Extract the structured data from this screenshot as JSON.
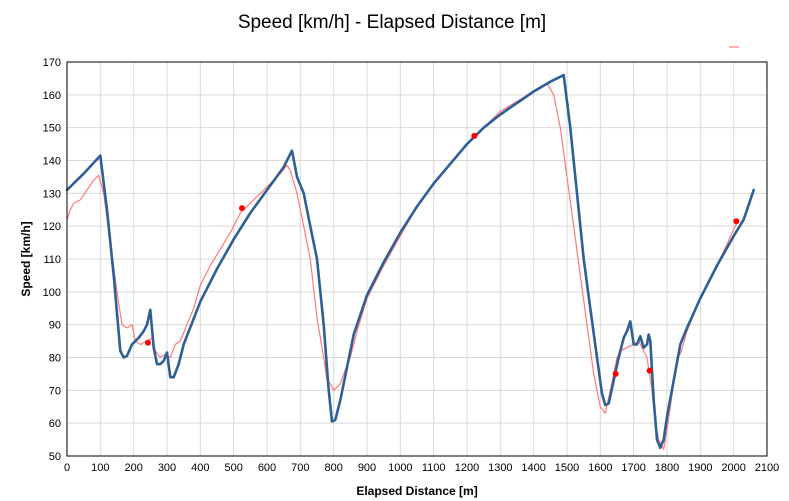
{
  "chart_data": {
    "type": "line",
    "title": "Speed [km/h] - Elapsed Distance [m]",
    "xlabel": "Elapsed Distance [m]",
    "ylabel": "Speed [km/h]",
    "xlim": [
      0,
      2100
    ],
    "ylim": [
      50,
      170
    ],
    "xticks": [
      0,
      100,
      200,
      300,
      400,
      500,
      600,
      700,
      800,
      900,
      1000,
      1100,
      1200,
      1300,
      1400,
      1500,
      1600,
      1700,
      1800,
      1900,
      2000,
      2100
    ],
    "yticks": [
      50,
      60,
      70,
      80,
      90,
      100,
      110,
      120,
      130,
      140,
      150,
      160,
      170
    ],
    "grid": true,
    "legend": "top-right",
    "series": [
      {
        "color": "#ff7a7a",
        "style": "thin-line",
        "points": [
          [
            0,
            122
          ],
          [
            10,
            125
          ],
          [
            20,
            127
          ],
          [
            40,
            128
          ],
          [
            60,
            131
          ],
          [
            80,
            134
          ],
          [
            95,
            135.5
          ],
          [
            110,
            130
          ],
          [
            130,
            115
          ],
          [
            150,
            100
          ],
          [
            165,
            90
          ],
          [
            180,
            89
          ],
          [
            195,
            90
          ],
          [
            205,
            85
          ],
          [
            220,
            84
          ],
          [
            240,
            85
          ],
          [
            255,
            86
          ],
          [
            265,
            82
          ],
          [
            280,
            80
          ],
          [
            295,
            81
          ],
          [
            310,
            80
          ],
          [
            325,
            84
          ],
          [
            340,
            85
          ],
          [
            360,
            90
          ],
          [
            380,
            95
          ],
          [
            400,
            102
          ],
          [
            430,
            108
          ],
          [
            460,
            113
          ],
          [
            490,
            118
          ],
          [
            520,
            124
          ],
          [
            560,
            128
          ],
          [
            600,
            132
          ],
          [
            640,
            136
          ],
          [
            660,
            138.5
          ],
          [
            670,
            137
          ],
          [
            690,
            130
          ],
          [
            710,
            120
          ],
          [
            730,
            110
          ],
          [
            750,
            92
          ],
          [
            770,
            80
          ],
          [
            780,
            73
          ],
          [
            790,
            72
          ],
          [
            800,
            70
          ],
          [
            810,
            71
          ],
          [
            820,
            72
          ],
          [
            830,
            75
          ],
          [
            850,
            80
          ],
          [
            870,
            88
          ],
          [
            900,
            98
          ],
          [
            950,
            108
          ],
          [
            1000,
            117
          ],
          [
            1050,
            126
          ],
          [
            1100,
            133
          ],
          [
            1150,
            139
          ],
          [
            1200,
            145
          ],
          [
            1250,
            150
          ],
          [
            1300,
            155
          ],
          [
            1350,
            158
          ],
          [
            1400,
            161
          ],
          [
            1440,
            163.5
          ],
          [
            1460,
            160
          ],
          [
            1480,
            150
          ],
          [
            1500,
            135
          ],
          [
            1520,
            120
          ],
          [
            1540,
            105
          ],
          [
            1560,
            90
          ],
          [
            1580,
            75
          ],
          [
            1600,
            65
          ],
          [
            1615,
            63
          ],
          [
            1630,
            70
          ],
          [
            1650,
            80
          ],
          [
            1660,
            82
          ],
          [
            1680,
            83
          ],
          [
            1700,
            84
          ],
          [
            1715,
            85
          ],
          [
            1725,
            83
          ],
          [
            1740,
            80
          ],
          [
            1755,
            70
          ],
          [
            1765,
            60
          ],
          [
            1775,
            55
          ],
          [
            1790,
            52
          ],
          [
            1800,
            58
          ],
          [
            1810,
            65
          ],
          [
            1820,
            72
          ],
          [
            1830,
            80
          ],
          [
            1840,
            81
          ],
          [
            1860,
            88
          ],
          [
            1880,
            93
          ],
          [
            1900,
            98
          ],
          [
            1950,
            108
          ],
          [
            2000,
            119
          ],
          [
            2010,
            121
          ]
        ]
      },
      {
        "color": "#2e5f95",
        "style": "thick-line",
        "points": [
          [
            0,
            131
          ],
          [
            50,
            136
          ],
          [
            100,
            141.5
          ],
          [
            120,
            125
          ],
          [
            140,
            105
          ],
          [
            160,
            82
          ],
          [
            170,
            80
          ],
          [
            180,
            80.5
          ],
          [
            195,
            84
          ],
          [
            215,
            86
          ],
          [
            230,
            88
          ],
          [
            240,
            90
          ],
          [
            250,
            94.5
          ],
          [
            260,
            83
          ],
          [
            270,
            78
          ],
          [
            280,
            78
          ],
          [
            290,
            79
          ],
          [
            300,
            81.5
          ],
          [
            310,
            74
          ],
          [
            320,
            74
          ],
          [
            335,
            78
          ],
          [
            350,
            84
          ],
          [
            400,
            97
          ],
          [
            450,
            107
          ],
          [
            500,
            116
          ],
          [
            550,
            124
          ],
          [
            600,
            131
          ],
          [
            650,
            138
          ],
          [
            675,
            143
          ],
          [
            690,
            135
          ],
          [
            710,
            130
          ],
          [
            730,
            120
          ],
          [
            750,
            110
          ],
          [
            770,
            90
          ],
          [
            785,
            70
          ],
          [
            795,
            60.5
          ],
          [
            805,
            61
          ],
          [
            820,
            67
          ],
          [
            840,
            77
          ],
          [
            860,
            87
          ],
          [
            900,
            99
          ],
          [
            950,
            109
          ],
          [
            1000,
            118
          ],
          [
            1050,
            126
          ],
          [
            1100,
            133
          ],
          [
            1150,
            139
          ],
          [
            1200,
            145
          ],
          [
            1250,
            150
          ],
          [
            1300,
            154
          ],
          [
            1350,
            157.5
          ],
          [
            1400,
            161
          ],
          [
            1450,
            164
          ],
          [
            1490,
            166
          ],
          [
            1510,
            150
          ],
          [
            1530,
            130
          ],
          [
            1550,
            110
          ],
          [
            1570,
            95
          ],
          [
            1590,
            80
          ],
          [
            1605,
            69
          ],
          [
            1615,
            65.5
          ],
          [
            1625,
            66
          ],
          [
            1640,
            73
          ],
          [
            1655,
            80
          ],
          [
            1670,
            86
          ],
          [
            1680,
            88
          ],
          [
            1690,
            91
          ],
          [
            1700,
            84
          ],
          [
            1710,
            84
          ],
          [
            1720,
            86.5
          ],
          [
            1730,
            83
          ],
          [
            1740,
            84
          ],
          [
            1745,
            87
          ],
          [
            1750,
            85
          ],
          [
            1760,
            67
          ],
          [
            1770,
            55
          ],
          [
            1780,
            52.5
          ],
          [
            1790,
            55
          ],
          [
            1800,
            62
          ],
          [
            1820,
            73
          ],
          [
            1840,
            84
          ],
          [
            1860,
            89
          ],
          [
            1900,
            98
          ],
          [
            1950,
            108
          ],
          [
            2000,
            117
          ],
          [
            2030,
            122
          ],
          [
            2060,
            131
          ]
        ]
      }
    ],
    "markers": [
      [
        243,
        84.5
      ],
      [
        525,
        125.5
      ],
      [
        1222,
        147.5
      ],
      [
        1646,
        75
      ],
      [
        1748,
        76
      ],
      [
        2008,
        121.5
      ]
    ],
    "marker_color": "#ff0000"
  }
}
